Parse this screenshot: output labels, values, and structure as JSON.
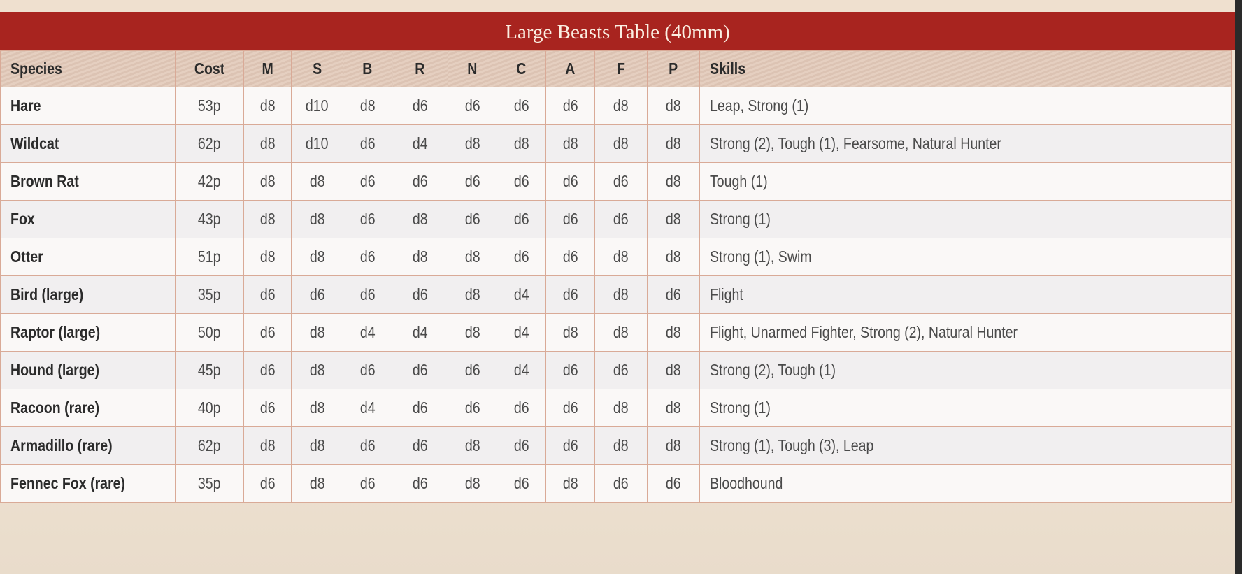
{
  "title": "Large Beasts Table (40mm)",
  "colors": {
    "title_bar": "#a8241f",
    "grid": "#d9aa97"
  },
  "columns": [
    "Species",
    "Cost",
    "M",
    "S",
    "B",
    "R",
    "N",
    "C",
    "A",
    "F",
    "P",
    "Skills"
  ],
  "rows": [
    [
      "Hare",
      "53p",
      "d8",
      "d10",
      "d8",
      "d6",
      "d6",
      "d6",
      "d6",
      "d8",
      "d8",
      "Leap, Strong (1)"
    ],
    [
      "Wildcat",
      "62p",
      "d8",
      "d10",
      "d6",
      "d4",
      "d8",
      "d8",
      "d8",
      "d8",
      "d8",
      "Strong (2), Tough (1), Fearsome, Natural Hunter"
    ],
    [
      "Brown Rat",
      "42p",
      "d8",
      "d8",
      "d6",
      "d6",
      "d6",
      "d6",
      "d6",
      "d6",
      "d8",
      "Tough (1)"
    ],
    [
      "Fox",
      "43p",
      "d8",
      "d8",
      "d6",
      "d8",
      "d6",
      "d6",
      "d6",
      "d6",
      "d8",
      "Strong (1)"
    ],
    [
      "Otter",
      "51p",
      "d8",
      "d8",
      "d6",
      "d8",
      "d8",
      "d6",
      "d6",
      "d8",
      "d8",
      "Strong (1), Swim"
    ],
    [
      "Bird (large)",
      "35p",
      "d6",
      "d6",
      "d6",
      "d6",
      "d8",
      "d4",
      "d6",
      "d8",
      "d6",
      "Flight"
    ],
    [
      "Raptor (large)",
      "50p",
      "d6",
      "d8",
      "d4",
      "d4",
      "d8",
      "d4",
      "d8",
      "d8",
      "d8",
      "Flight, Unarmed Fighter, Strong (2), Natural Hunter"
    ],
    [
      "Hound (large)",
      "45p",
      "d6",
      "d8",
      "d6",
      "d6",
      "d6",
      "d4",
      "d6",
      "d6",
      "d8",
      "Strong (2), Tough (1)"
    ],
    [
      "Racoon (rare)",
      "40p",
      "d6",
      "d8",
      "d4",
      "d6",
      "d6",
      "d6",
      "d6",
      "d8",
      "d8",
      "Strong (1)"
    ],
    [
      "Armadillo (rare)",
      "62p",
      "d8",
      "d8",
      "d6",
      "d6",
      "d8",
      "d6",
      "d6",
      "d8",
      "d8",
      "Strong (1), Tough (3),  Leap"
    ],
    [
      "Fennec Fox (rare)",
      "35p",
      "d6",
      "d8",
      "d6",
      "d6",
      "d8",
      "d6",
      "d8",
      "d6",
      "d6",
      "Bloodhound"
    ]
  ]
}
